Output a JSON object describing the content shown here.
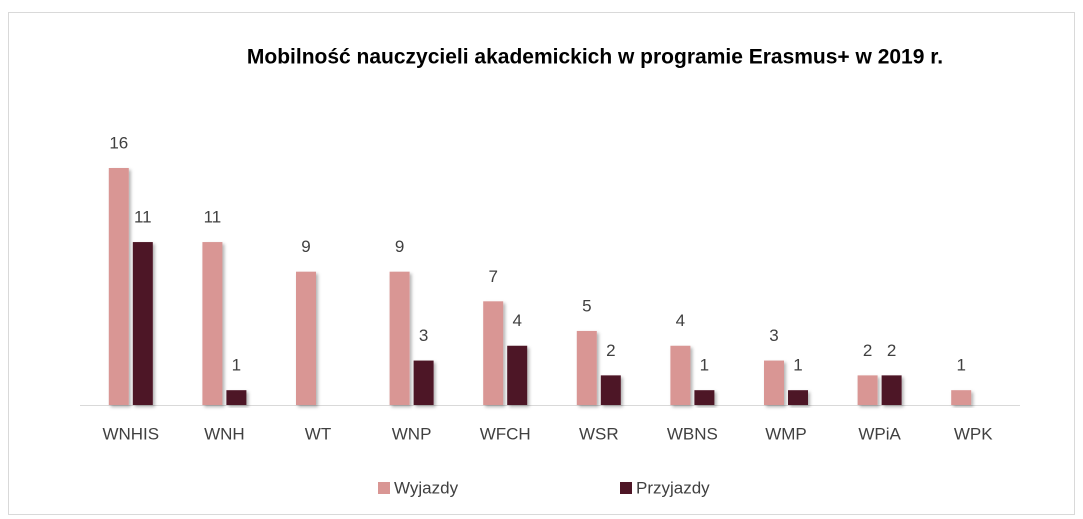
{
  "chart_data": {
    "type": "bar",
    "title": "Mobilność nauczycieli akademickich w programie Erasmus+ w 2019 r.",
    "categories": [
      "WNHIS",
      "WNH",
      "WT",
      "WNP",
      "WFCH",
      "WSR",
      "WBNS",
      "WMP",
      "WPiA",
      "WPK"
    ],
    "series": [
      {
        "name": "Wyjazdy",
        "color": "#d99694",
        "values": [
          16,
          11,
          9,
          9,
          7,
          5,
          4,
          3,
          2,
          1
        ]
      },
      {
        "name": "Przyjazdy",
        "color": "#4e1626",
        "values": [
          11,
          1,
          null,
          3,
          4,
          2,
          1,
          1,
          2,
          null
        ]
      }
    ],
    "legend": "bottom"
  }
}
